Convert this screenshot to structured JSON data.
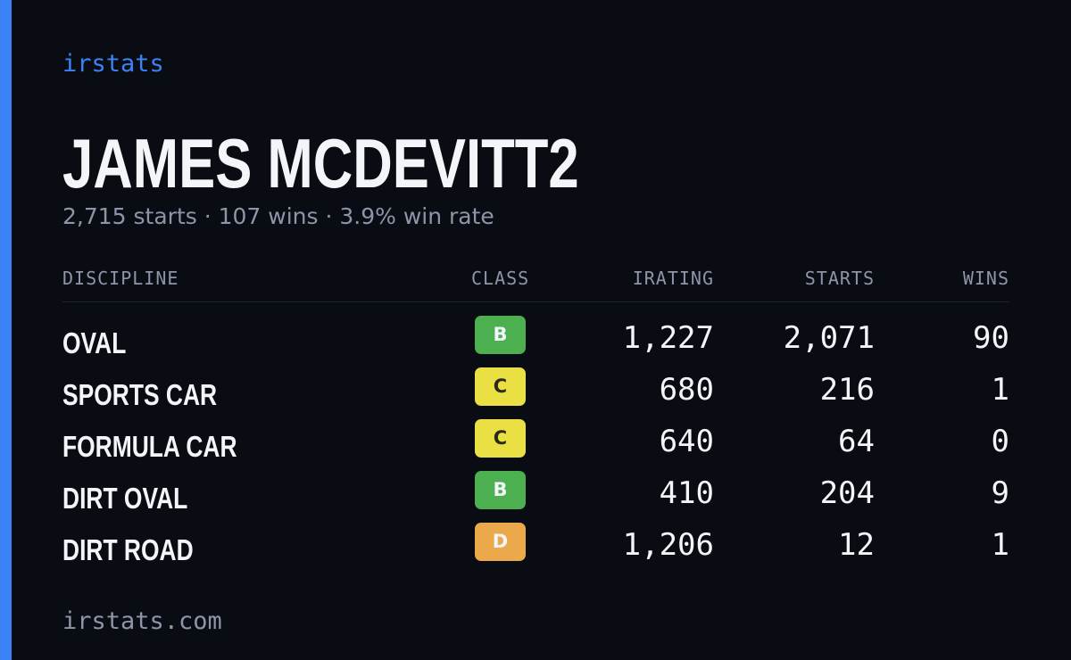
{
  "brand": "irstats",
  "profile": {
    "name": "JAMES MCDEVITT2",
    "summary": "2,715 starts · 107 wins · 3.9% win rate"
  },
  "table": {
    "headers": {
      "discipline": "DISCIPLINE",
      "class": "CLASS",
      "irating": "IRATING",
      "starts": "STARTS",
      "wins": "WINS"
    },
    "rows": [
      {
        "discipline": "OVAL",
        "class": "B",
        "irating": "1,227",
        "starts": "2,071",
        "wins": "90"
      },
      {
        "discipline": "SPORTS CAR",
        "class": "C",
        "irating": "680",
        "starts": "216",
        "wins": "1"
      },
      {
        "discipline": "FORMULA CAR",
        "class": "C",
        "irating": "640",
        "starts": "64",
        "wins": "0"
      },
      {
        "discipline": "DIRT OVAL",
        "class": "B",
        "irating": "410",
        "starts": "204",
        "wins": "9"
      },
      {
        "discipline": "DIRT ROAD",
        "class": "D",
        "irating": "1,206",
        "starts": "12",
        "wins": "1"
      }
    ]
  },
  "footer": "irstats.com",
  "colors": {
    "background": "#0a0c13",
    "accent": "#3b82f6",
    "class_B": "#4caf50",
    "class_C": "#ebe043",
    "class_D": "#eca94b"
  }
}
